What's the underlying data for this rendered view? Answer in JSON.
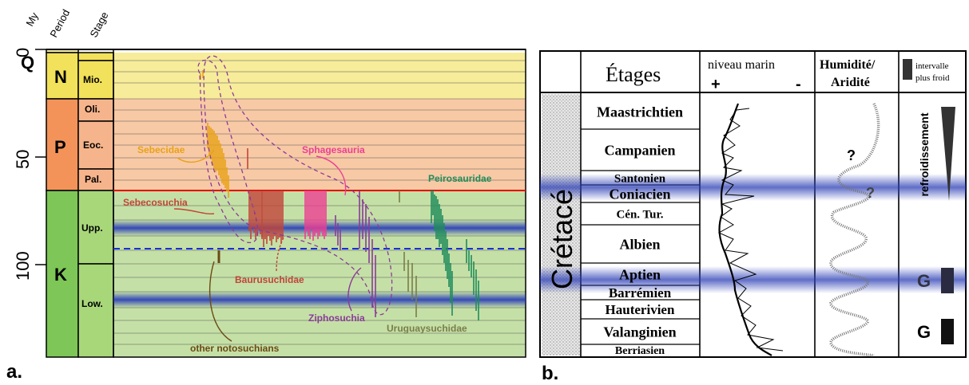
{
  "panel_a": {
    "header": {
      "my": "My",
      "period": "Period",
      "stage": "Stage"
    },
    "ticks": [
      "0",
      "50",
      "100"
    ],
    "periods": [
      "Q",
      "N",
      "P",
      "K"
    ],
    "stages": [
      "Mio.",
      "Oli.",
      "Eoc.",
      "Pal.",
      "Upp.",
      "Low."
    ],
    "clade_labels": {
      "sebecidae": "Sebecidae",
      "sphagesauria": "Sphagesauria",
      "peirosauridae": "Peirosauridae",
      "sebecosuchia": "Sebecosuchia",
      "baurusuchidae": "Baurusuchidae",
      "ziphosuchia": "Ziphosuchia",
      "uruguaysuchidae": "Uruguaysuchidae",
      "other": "other notosuchians"
    },
    "panel_label": "a.",
    "colors": {
      "neogene": "#f7ec9a",
      "paleogene": "#f8c9a5",
      "cretaceous": "#c5e0a6",
      "sebecidae": "#e8a217",
      "sphagesauria": "#ec3f93",
      "peirosauridae": "#1f8c5c",
      "sebecosuchia": "#c1453a",
      "ziphosuchia": "#8a3b9a",
      "uruguaysuchidae": "#7a7d4a",
      "other": "#6b4a14"
    }
  },
  "panel_b": {
    "headers": {
      "etages": "Étages",
      "niveau": "niveau marin",
      "plus": "+",
      "minus": "-",
      "humidite": "Humidité/",
      "aridite": "Aridité",
      "legend1": "intervalle",
      "legend2": "plus froid"
    },
    "period": "Crétacé",
    "stages": [
      "Maastrichtien",
      "Campanien",
      "Santonien",
      "Coniacien",
      "Cén. Tur.",
      "Albien",
      "Aptien",
      "Barrémien",
      "Hauterivien",
      "Valanginien",
      "Berriasien"
    ],
    "question": "?",
    "refroidissement": "refroidissement",
    "glacial": "G",
    "panel_label": "b."
  }
}
